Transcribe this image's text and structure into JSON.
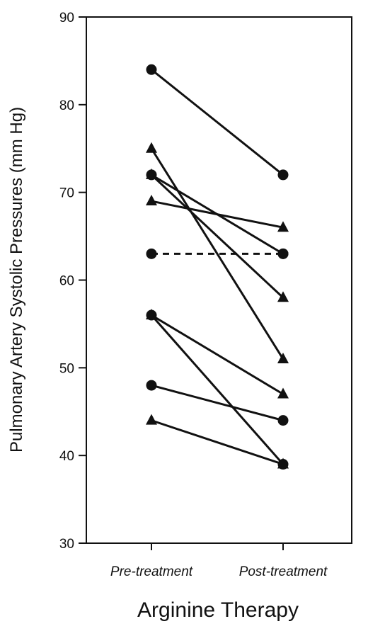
{
  "chart_data": {
    "type": "line",
    "title": "",
    "xlabel": "Arginine Therapy",
    "ylabel": "Pulmonary Artery Systolic Pressures (mm Hg)",
    "categories": [
      "Pre-treatment",
      "Post-treatment"
    ],
    "ylim": [
      30,
      90
    ],
    "yticks": [
      30,
      40,
      50,
      60,
      70,
      80,
      90
    ],
    "grid": false,
    "legend": "none",
    "series": [
      {
        "marker": "circle",
        "line": "solid",
        "values": [
          84,
          72
        ]
      },
      {
        "marker": "triangle",
        "line": "solid",
        "values": [
          75,
          51
        ]
      },
      {
        "marker": "circle",
        "line": "solid",
        "values": [
          72,
          63
        ]
      },
      {
        "marker": "triangle",
        "line": "solid",
        "values": [
          72,
          58
        ]
      },
      {
        "marker": "triangle",
        "line": "solid",
        "values": [
          69,
          66
        ]
      },
      {
        "marker": "circle",
        "line": "dashed",
        "values": [
          63,
          63
        ]
      },
      {
        "marker": "triangle",
        "line": "solid",
        "values": [
          56,
          47
        ]
      },
      {
        "marker": "circle",
        "line": "solid",
        "values": [
          56,
          39
        ]
      },
      {
        "marker": "circle",
        "line": "solid",
        "values": [
          48,
          44
        ]
      },
      {
        "marker": "triangle",
        "line": "solid",
        "values": [
          44,
          39
        ]
      }
    ],
    "colors": {
      "line": "#111111",
      "marker": "#111111",
      "axis": "#111111",
      "background": "#ffffff"
    }
  }
}
